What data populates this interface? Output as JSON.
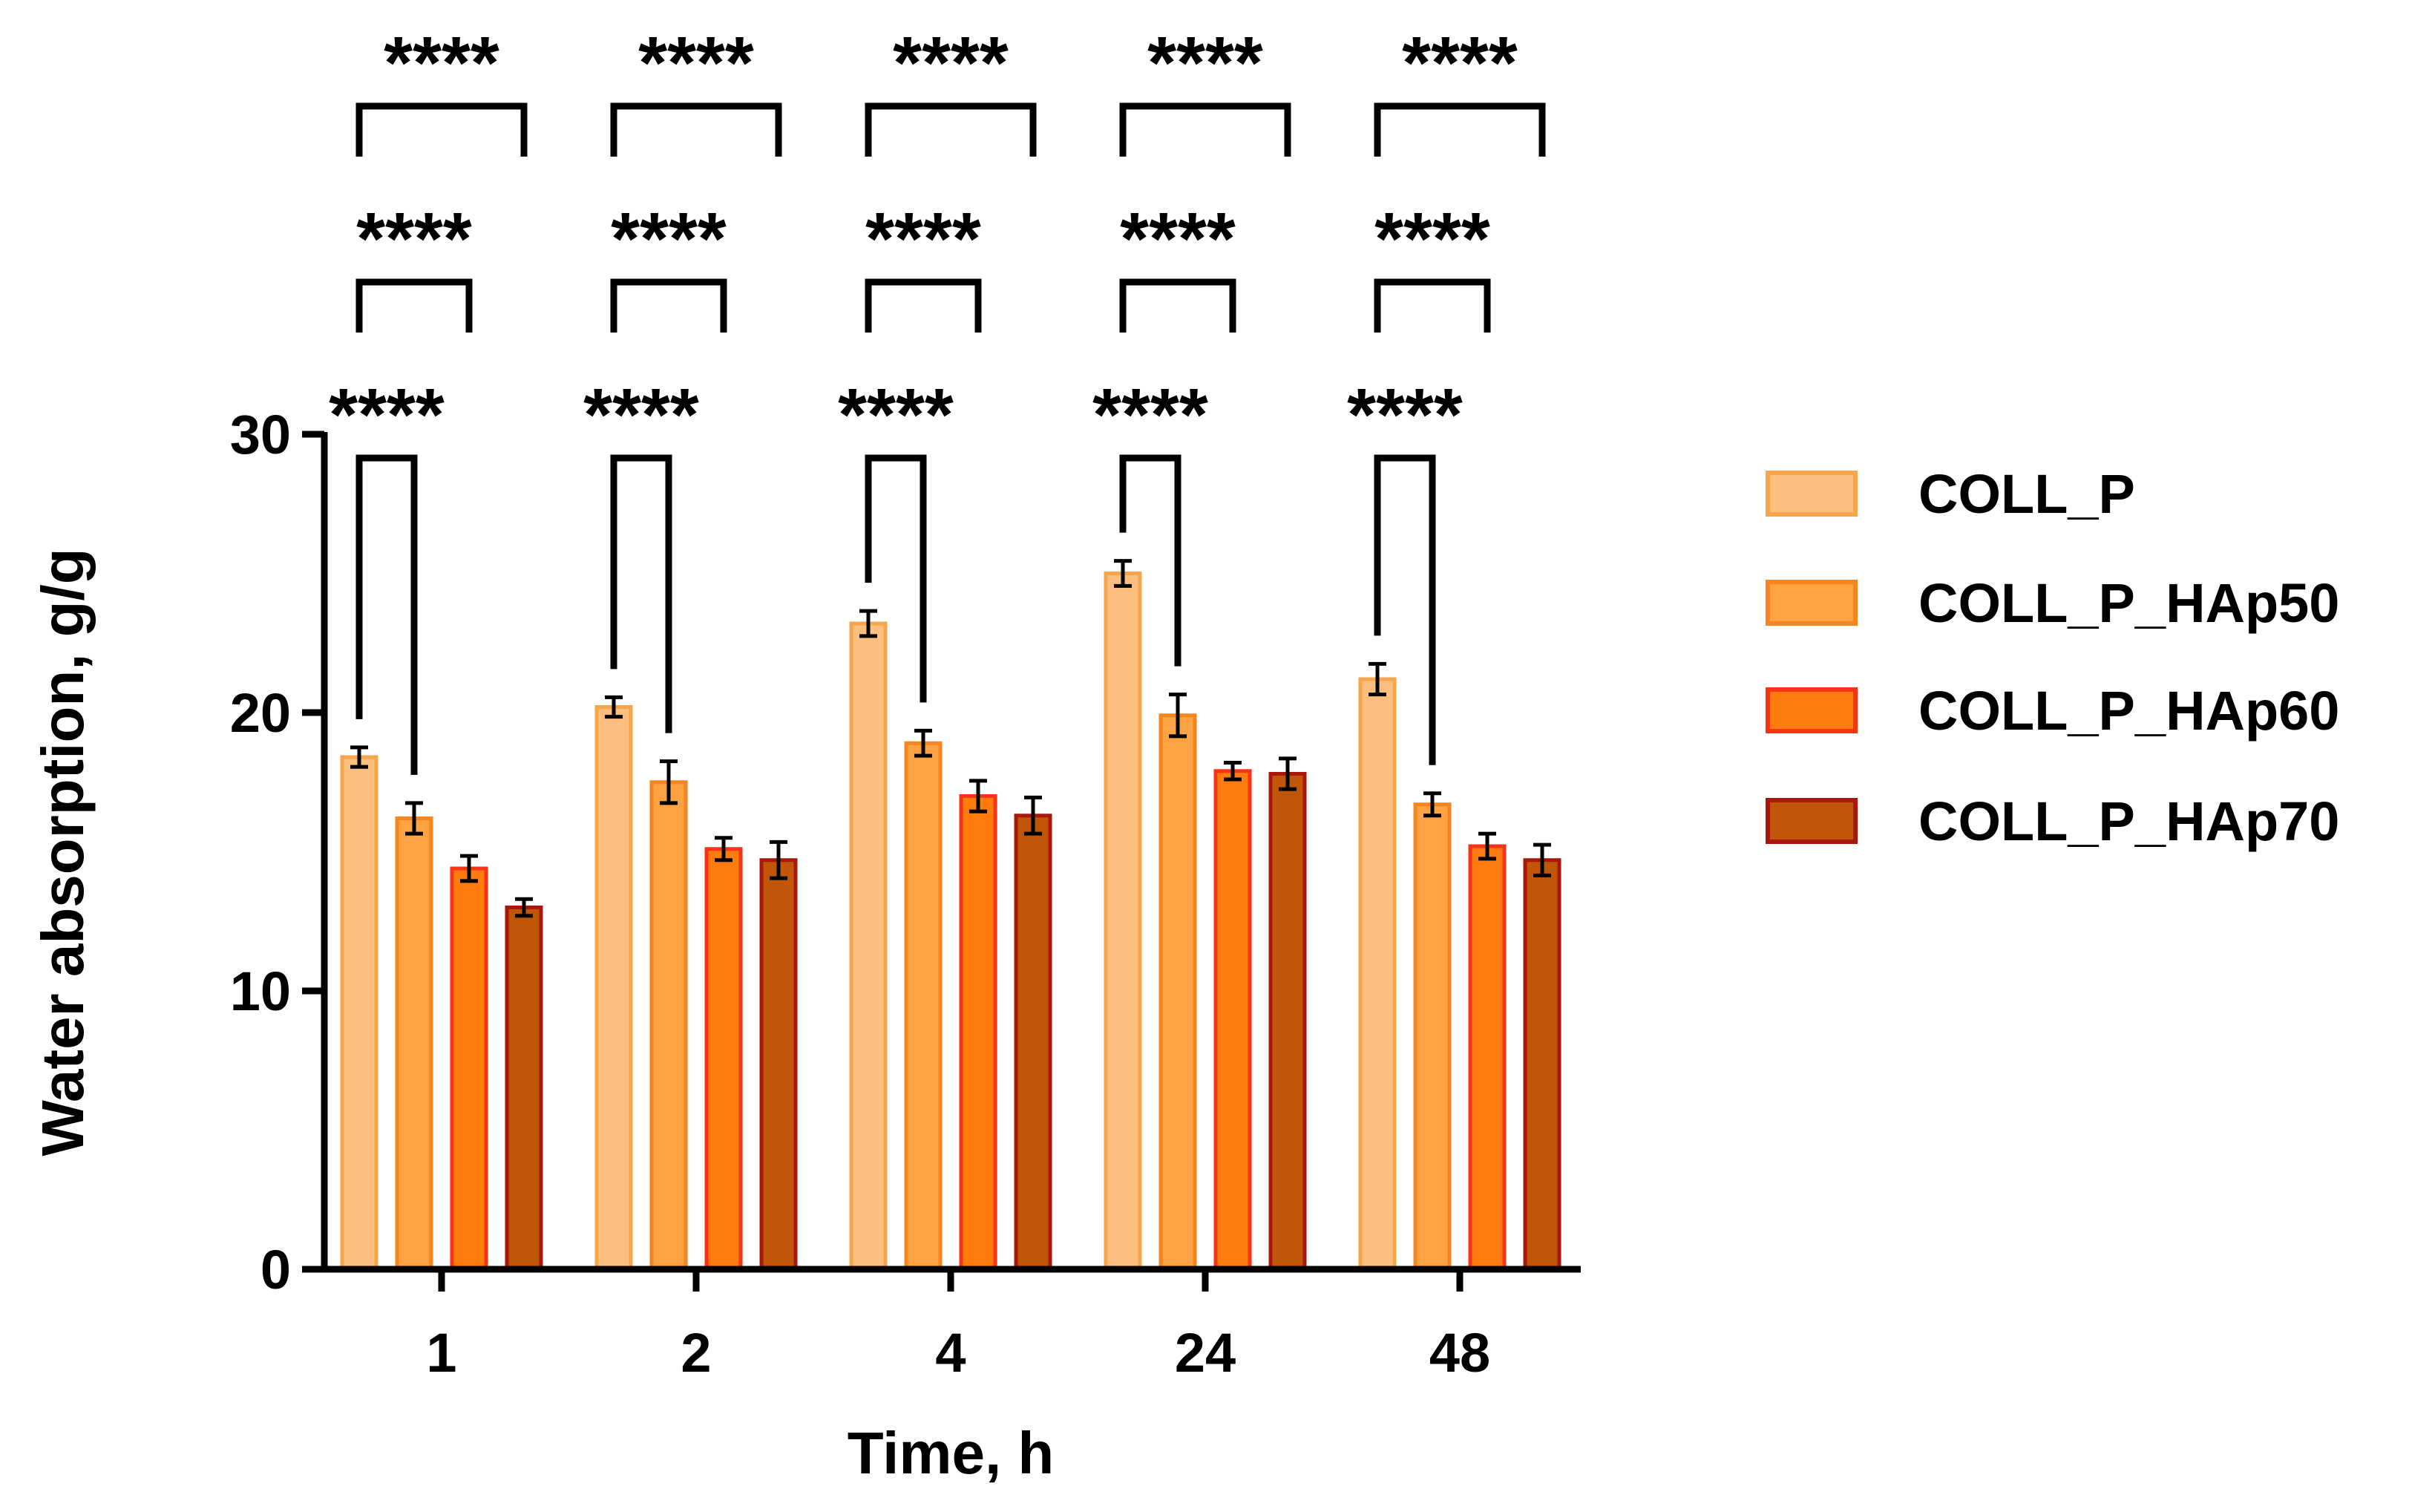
{
  "chart_data": {
    "type": "bar",
    "title": "",
    "xlabel": "Time, h",
    "ylabel": "Water absorption, g/g",
    "ylim": [
      0,
      30
    ],
    "yticks": [
      "0",
      "10",
      "20",
      "30"
    ],
    "categories": [
      "1",
      "2",
      "4",
      "24",
      "48"
    ],
    "grid": false,
    "legend_position": "right",
    "series": [
      {
        "name": "COLL_P",
        "fill": "#fdbf80",
        "stroke": "#f7a54a",
        "values": [
          18.4,
          20.2,
          23.2,
          25.0,
          21.2
        ],
        "errors": [
          0.35,
          0.35,
          0.45,
          0.45,
          0.55
        ]
      },
      {
        "name": "COLL_P_HAp50",
        "fill": "#fea242",
        "stroke": "#f5851f",
        "values": [
          16.2,
          17.5,
          18.9,
          19.9,
          16.7
        ],
        "errors": [
          0.55,
          0.75,
          0.45,
          0.75,
          0.4
        ]
      },
      {
        "name": "COLL_P_HAp60",
        "fill": "#fe7b0e",
        "stroke": "#f73416",
        "values": [
          14.4,
          15.1,
          17.0,
          17.9,
          15.2
        ],
        "errors": [
          0.45,
          0.4,
          0.55,
          0.3,
          0.45
        ]
      },
      {
        "name": "COLL_P_HAp70",
        "fill": "#c15508",
        "stroke": "#a8170c",
        "values": [
          13.0,
          14.7,
          16.3,
          17.8,
          14.7
        ],
        "errors": [
          0.3,
          0.65,
          0.65,
          0.55,
          0.55
        ]
      }
    ],
    "annotations": [
      {
        "label": "****",
        "pair": [
          "COLL_P",
          "COLL_P_HAp50"
        ]
      },
      {
        "label": "****",
        "pair": [
          "COLL_P",
          "COLL_P_HAp60"
        ]
      },
      {
        "label": "****",
        "pair": [
          "COLL_P",
          "COLL_P_HAp70"
        ]
      }
    ]
  }
}
